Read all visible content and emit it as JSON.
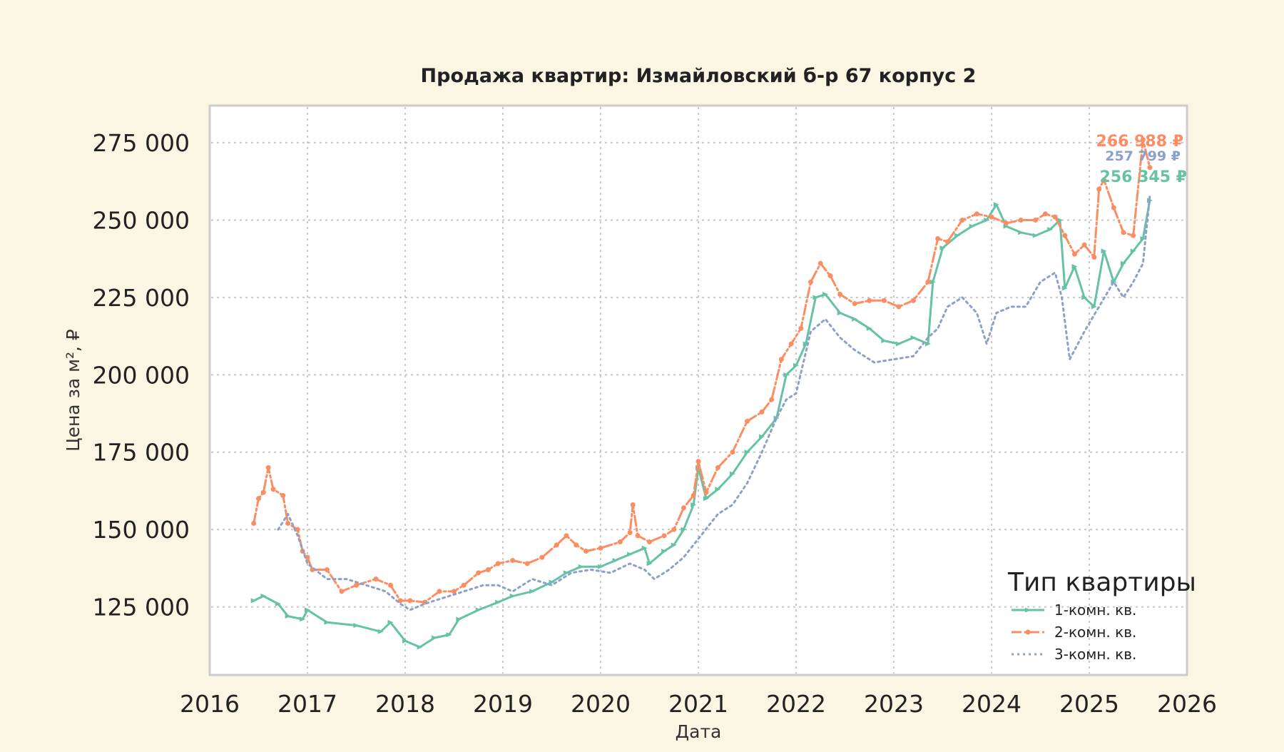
{
  "chart_data": {
    "type": "line",
    "title": "Продажа квартир: Измайловский б-р 67 корпус 2",
    "xlabel": "Дата",
    "ylabel": "Цена за м², ₽",
    "xlim": [
      2016.0,
      2026.0
    ],
    "ylim": [
      103000,
      287000
    ],
    "x_ticks": [
      2016,
      2017,
      2018,
      2019,
      2020,
      2021,
      2022,
      2023,
      2024,
      2025,
      2026
    ],
    "x_tick_labels": [
      "2016",
      "2017",
      "2018",
      "2019",
      "2020",
      "2021",
      "2022",
      "2023",
      "2024",
      "2025",
      "2026"
    ],
    "y_ticks": [
      125000,
      150000,
      175000,
      200000,
      225000,
      250000,
      275000
    ],
    "y_tick_labels": [
      "125 000",
      "150 000",
      "175 000",
      "200 000",
      "225 000",
      "250 000",
      "275 000"
    ],
    "grid": true,
    "legend": {
      "title": "Тип квартиры",
      "placement": "bottom-right"
    },
    "series": [
      {
        "name": "1-комн. кв.",
        "color": "#66c2a5",
        "style": "solid",
        "marker": "triangle",
        "end_label": "256 345 ₽",
        "points": [
          [
            2016.45,
            127000
          ],
          [
            2016.55,
            128500
          ],
          [
            2016.7,
            126000
          ],
          [
            2016.8,
            122000
          ],
          [
            2016.95,
            121000
          ],
          [
            2017.0,
            124000
          ],
          [
            2017.2,
            120000
          ],
          [
            2017.5,
            119000
          ],
          [
            2017.75,
            117000
          ],
          [
            2017.85,
            120000
          ],
          [
            2018.0,
            114000
          ],
          [
            2018.15,
            112000
          ],
          [
            2018.3,
            115000
          ],
          [
            2018.45,
            116000
          ],
          [
            2018.55,
            121000
          ],
          [
            2018.75,
            124000
          ],
          [
            2018.95,
            126500
          ],
          [
            2019.1,
            128500
          ],
          [
            2019.3,
            130000
          ],
          [
            2019.5,
            133000
          ],
          [
            2019.65,
            136000
          ],
          [
            2019.8,
            138000
          ],
          [
            2020.0,
            138000
          ],
          [
            2020.15,
            140000
          ],
          [
            2020.3,
            142000
          ],
          [
            2020.45,
            144000
          ],
          [
            2020.5,
            139000
          ],
          [
            2020.65,
            143000
          ],
          [
            2020.75,
            145000
          ],
          [
            2020.85,
            150000
          ],
          [
            2020.95,
            158000
          ],
          [
            2021.0,
            170000
          ],
          [
            2021.08,
            160000
          ],
          [
            2021.2,
            163000
          ],
          [
            2021.35,
            168000
          ],
          [
            2021.5,
            175000
          ],
          [
            2021.65,
            180000
          ],
          [
            2021.8,
            186000
          ],
          [
            2021.9,
            200000
          ],
          [
            2022.0,
            203000
          ],
          [
            2022.1,
            210000
          ],
          [
            2022.2,
            225000
          ],
          [
            2022.3,
            226000
          ],
          [
            2022.45,
            220000
          ],
          [
            2022.6,
            218000
          ],
          [
            2022.75,
            215000
          ],
          [
            2022.9,
            211000
          ],
          [
            2023.05,
            210000
          ],
          [
            2023.2,
            212000
          ],
          [
            2023.35,
            210000
          ],
          [
            2023.4,
            230000
          ],
          [
            2023.5,
            241000
          ],
          [
            2023.65,
            245000
          ],
          [
            2023.8,
            248000
          ],
          [
            2023.95,
            250000
          ],
          [
            2024.05,
            255000
          ],
          [
            2024.15,
            248000
          ],
          [
            2024.3,
            246000
          ],
          [
            2024.45,
            245000
          ],
          [
            2024.6,
            247000
          ],
          [
            2024.7,
            250000
          ],
          [
            2024.75,
            228000
          ],
          [
            2024.85,
            235000
          ],
          [
            2024.95,
            225000
          ],
          [
            2025.05,
            222000
          ],
          [
            2025.15,
            240000
          ],
          [
            2025.25,
            230000
          ],
          [
            2025.35,
            236000
          ],
          [
            2025.45,
            240000
          ],
          [
            2025.55,
            244000
          ],
          [
            2025.62,
            256345
          ]
        ]
      },
      {
        "name": "2-комн. кв.",
        "color": "#fc8d62",
        "style": "dashdot",
        "marker": "circle",
        "end_label": "266 988 ₽",
        "points": [
          [
            2016.45,
            152000
          ],
          [
            2016.5,
            160000
          ],
          [
            2016.55,
            162000
          ],
          [
            2016.6,
            170000
          ],
          [
            2016.65,
            163000
          ],
          [
            2016.75,
            161000
          ],
          [
            2016.8,
            152000
          ],
          [
            2016.9,
            150000
          ],
          [
            2016.95,
            143000
          ],
          [
            2017.0,
            141000
          ],
          [
            2017.05,
            137000
          ],
          [
            2017.2,
            137000
          ],
          [
            2017.35,
            130000
          ],
          [
            2017.5,
            132000
          ],
          [
            2017.7,
            134000
          ],
          [
            2017.85,
            132000
          ],
          [
            2017.95,
            127000
          ],
          [
            2018.05,
            127000
          ],
          [
            2018.2,
            126500
          ],
          [
            2018.35,
            130000
          ],
          [
            2018.5,
            130000
          ],
          [
            2018.6,
            132000
          ],
          [
            2018.75,
            136000
          ],
          [
            2018.85,
            137000
          ],
          [
            2018.95,
            139000
          ],
          [
            2019.1,
            140000
          ],
          [
            2019.25,
            139000
          ],
          [
            2019.4,
            141000
          ],
          [
            2019.55,
            145000
          ],
          [
            2019.65,
            148000
          ],
          [
            2019.75,
            145000
          ],
          [
            2019.85,
            143000
          ],
          [
            2020.0,
            144000
          ],
          [
            2020.2,
            146000
          ],
          [
            2020.3,
            149000
          ],
          [
            2020.33,
            158000
          ],
          [
            2020.38,
            148000
          ],
          [
            2020.5,
            146000
          ],
          [
            2020.65,
            148000
          ],
          [
            2020.75,
            150000
          ],
          [
            2020.85,
            157000
          ],
          [
            2020.95,
            161000
          ],
          [
            2021.0,
            172000
          ],
          [
            2021.08,
            162000
          ],
          [
            2021.2,
            170000
          ],
          [
            2021.35,
            175000
          ],
          [
            2021.5,
            185000
          ],
          [
            2021.65,
            188000
          ],
          [
            2021.75,
            192000
          ],
          [
            2021.85,
            205000
          ],
          [
            2021.95,
            210000
          ],
          [
            2022.05,
            215000
          ],
          [
            2022.15,
            230000
          ],
          [
            2022.25,
            236000
          ],
          [
            2022.35,
            232000
          ],
          [
            2022.45,
            226000
          ],
          [
            2022.6,
            223000
          ],
          [
            2022.75,
            224000
          ],
          [
            2022.9,
            224000
          ],
          [
            2023.05,
            222000
          ],
          [
            2023.2,
            224000
          ],
          [
            2023.35,
            230000
          ],
          [
            2023.45,
            244000
          ],
          [
            2023.55,
            243000
          ],
          [
            2023.7,
            250000
          ],
          [
            2023.85,
            252000
          ],
          [
            2024.0,
            251000
          ],
          [
            2024.15,
            249000
          ],
          [
            2024.3,
            250000
          ],
          [
            2024.45,
            250000
          ],
          [
            2024.55,
            252000
          ],
          [
            2024.65,
            251000
          ],
          [
            2024.75,
            245000
          ],
          [
            2024.85,
            239000
          ],
          [
            2024.95,
            242000
          ],
          [
            2025.05,
            238000
          ],
          [
            2025.1,
            260000
          ],
          [
            2025.15,
            263000
          ],
          [
            2025.25,
            254000
          ],
          [
            2025.35,
            246000
          ],
          [
            2025.45,
            245000
          ],
          [
            2025.55,
            276000
          ],
          [
            2025.62,
            266988
          ]
        ]
      },
      {
        "name": "3-комн. кв.",
        "color": "#8da0cb",
        "style": "dotted",
        "marker": "none",
        "end_label": "257 799 ₽",
        "points": [
          [
            2016.7,
            150000
          ],
          [
            2016.8,
            155000
          ],
          [
            2016.9,
            148000
          ],
          [
            2017.0,
            139000
          ],
          [
            2017.2,
            134000
          ],
          [
            2017.4,
            134000
          ],
          [
            2017.6,
            132000
          ],
          [
            2017.8,
            130000
          ],
          [
            2017.95,
            126000
          ],
          [
            2018.05,
            124000
          ],
          [
            2018.2,
            126000
          ],
          [
            2018.4,
            128000
          ],
          [
            2018.6,
            130000
          ],
          [
            2018.8,
            132000
          ],
          [
            2018.95,
            132000
          ],
          [
            2019.1,
            130000
          ],
          [
            2019.3,
            134000
          ],
          [
            2019.5,
            132000
          ],
          [
            2019.7,
            136000
          ],
          [
            2019.9,
            137000
          ],
          [
            2020.1,
            136000
          ],
          [
            2020.3,
            139000
          ],
          [
            2020.45,
            137000
          ],
          [
            2020.55,
            134000
          ],
          [
            2020.7,
            137000
          ],
          [
            2020.85,
            141000
          ],
          [
            2021.0,
            147000
          ],
          [
            2021.2,
            155000
          ],
          [
            2021.35,
            158000
          ],
          [
            2021.5,
            165000
          ],
          [
            2021.65,
            175000
          ],
          [
            2021.8,
            186000
          ],
          [
            2021.9,
            192000
          ],
          [
            2022.0,
            194000
          ],
          [
            2022.15,
            214000
          ],
          [
            2022.3,
            218000
          ],
          [
            2022.45,
            212000
          ],
          [
            2022.6,
            208000
          ],
          [
            2022.8,
            204000
          ],
          [
            2023.0,
            205000
          ],
          [
            2023.2,
            206000
          ],
          [
            2023.35,
            212000
          ],
          [
            2023.45,
            215000
          ],
          [
            2023.55,
            222000
          ],
          [
            2023.7,
            225000
          ],
          [
            2023.85,
            220000
          ],
          [
            2023.95,
            210000
          ],
          [
            2024.05,
            220000
          ],
          [
            2024.2,
            222000
          ],
          [
            2024.35,
            222000
          ],
          [
            2024.5,
            230000
          ],
          [
            2024.65,
            233000
          ],
          [
            2024.72,
            225000
          ],
          [
            2024.8,
            205000
          ],
          [
            2024.95,
            214000
          ],
          [
            2025.1,
            222000
          ],
          [
            2025.25,
            230000
          ],
          [
            2025.35,
            225000
          ],
          [
            2025.45,
            230000
          ],
          [
            2025.55,
            236000
          ],
          [
            2025.62,
            257799
          ]
        ]
      }
    ]
  }
}
